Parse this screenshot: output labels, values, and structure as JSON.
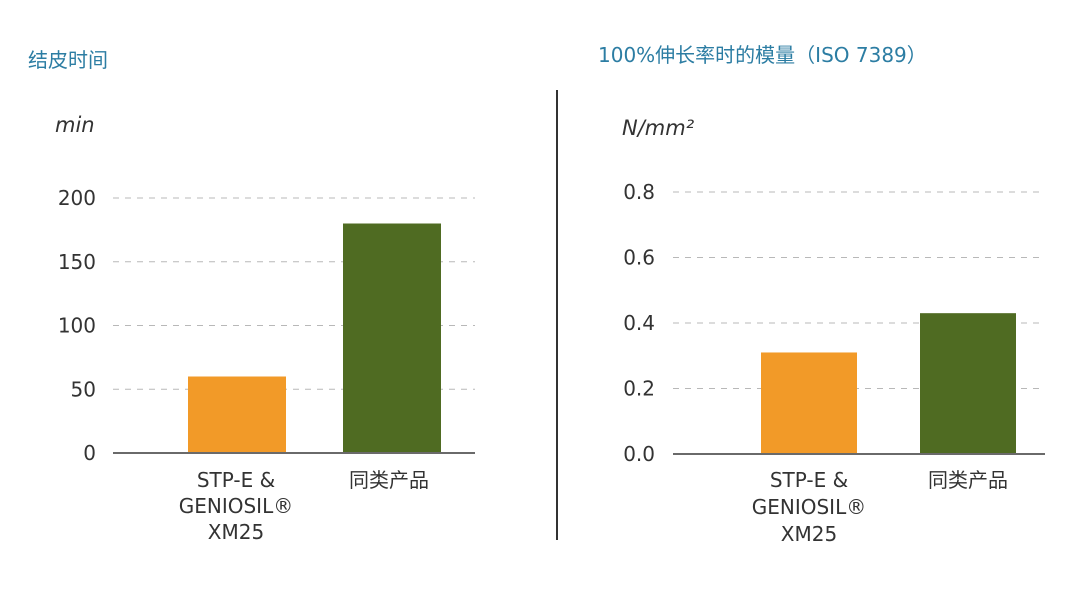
{
  "chart_data": [
    {
      "type": "bar",
      "title": "结皮时间",
      "ylabel": "min",
      "xlabel": "",
      "ylim": [
        0,
        200
      ],
      "yticks": [
        "0",
        "50",
        "100",
        "150",
        "200"
      ],
      "tick_values": [
        0,
        50,
        100,
        150,
        200
      ],
      "categories": [
        [
          "STP-E &",
          "GENIOSIL®",
          "XM25"
        ],
        [
          "同类产品"
        ]
      ],
      "values": [
        60,
        180
      ],
      "colors": [
        "#f29a28",
        "#4f6b22"
      ],
      "grid": true
    },
    {
      "type": "bar",
      "title": "100%伸长率时的模量（ISO 7389）",
      "ylabel": "N/mm²",
      "xlabel": "",
      "ylim": [
        0,
        0.8
      ],
      "yticks": [
        "0.0",
        "0.2",
        "0.4",
        "0.6",
        "0.8"
      ],
      "tick_values": [
        0,
        0.2,
        0.4,
        0.6,
        0.8
      ],
      "categories": [
        [
          "STP-E &",
          "GENIOSIL®",
          "XM25"
        ],
        [
          "同类产品"
        ]
      ],
      "values": [
        0.31,
        0.43
      ],
      "colors": [
        "#f29a28",
        "#4f6b22"
      ],
      "grid": true
    }
  ]
}
